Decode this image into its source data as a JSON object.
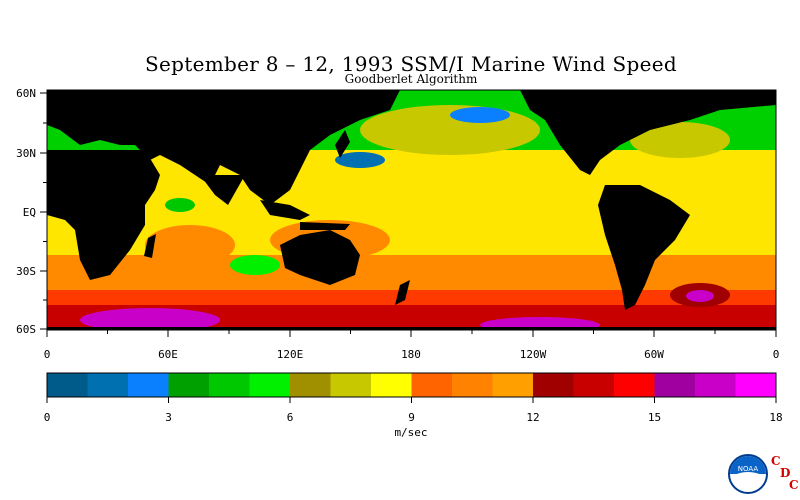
{
  "title": "September 8 – 12, 1993 SSM/I Marine Wind Speed",
  "subtitle": "Goodberlet Algorithm",
  "map": {
    "lat_labels": [
      "60N",
      "30N",
      "EQ",
      "30S",
      "60S"
    ],
    "lon_labels": [
      "0",
      "60E",
      "120E",
      "180",
      "120W",
      "60W",
      "0"
    ],
    "land_color": "#000000"
  },
  "colorbar": {
    "unit": "m/sec",
    "tick_labels": [
      "0",
      "3",
      "6",
      "9",
      "12",
      "15",
      "18"
    ],
    "colors": [
      "#005a8a",
      "#0070b0",
      "#0a80ff",
      "#00a000",
      "#00c800",
      "#00f000",
      "#a09000",
      "#c8c800",
      "#ffff00",
      "#ff6400",
      "#ff8200",
      "#ffa000",
      "#a00000",
      "#c80000",
      "#ff0000",
      "#a000a0",
      "#c800c8",
      "#ff00ff"
    ]
  },
  "logo": {
    "noaa_text": "NOAA",
    "cdc_letters": [
      "C",
      "D",
      "C"
    ]
  }
}
